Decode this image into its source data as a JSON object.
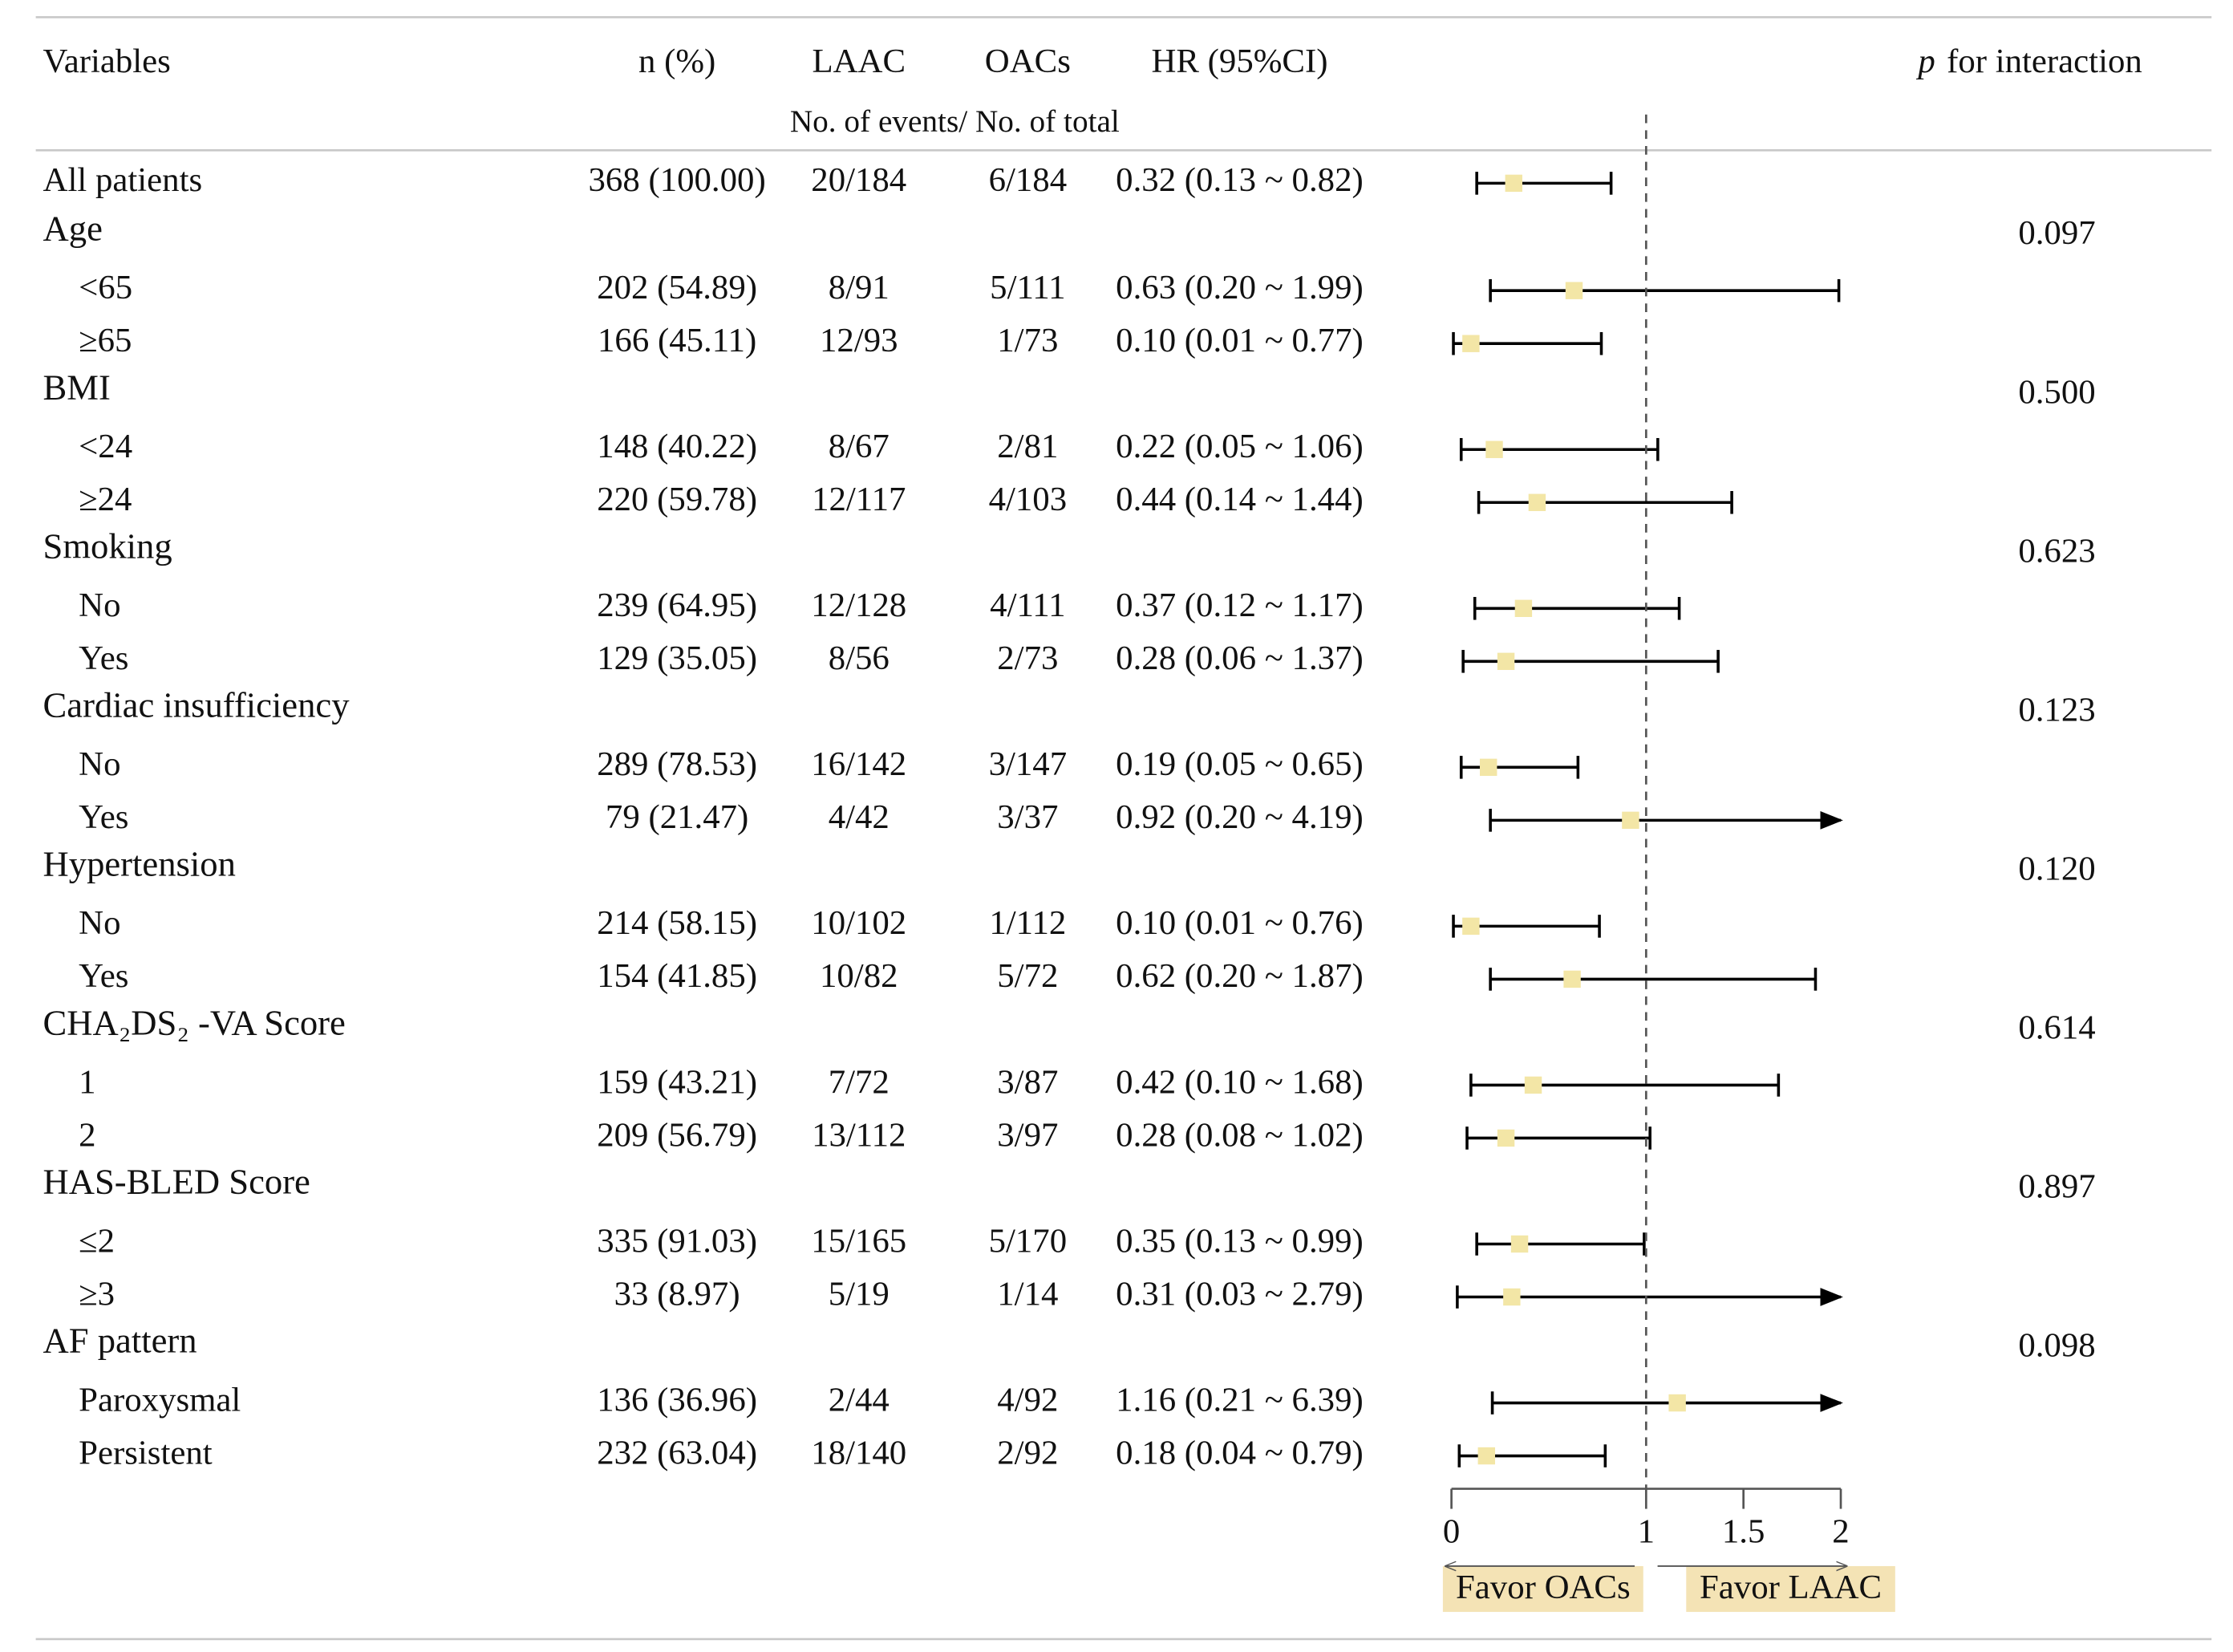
{
  "chart_data": {
    "type": "forest",
    "headers": {
      "variables": "Variables",
      "n": "n (%)",
      "laac": "LAAC",
      "oacs": "OACs",
      "hr": "HR (95%CI)",
      "p_symbol": "p",
      "p_text": "for interaction",
      "subheader": "No. of events/ No. of total"
    },
    "overall": {
      "label": "All patients",
      "n": "368 (100.00)",
      "laac": "20/184",
      "oacs": "6/184",
      "hr_label": "0.32 (0.13 ~ 0.82)",
      "hr": 0.32,
      "lo": 0.13,
      "hi": 0.82
    },
    "groups": [
      {
        "label": "Age",
        "p": "0.097",
        "rows": [
          {
            "label": "<65",
            "n": "202 (54.89)",
            "laac": "8/91",
            "oacs": "5/111",
            "hr_label": "0.63 (0.20 ~ 1.99)",
            "hr": 0.63,
            "lo": 0.2,
            "hi": 1.99
          },
          {
            "label": "≥65",
            "n": "166 (45.11)",
            "laac": "12/93",
            "oacs": "1/73",
            "hr_label": "0.10 (0.01 ~ 0.77)",
            "hr": 0.1,
            "lo": 0.01,
            "hi": 0.77
          }
        ]
      },
      {
        "label": "BMI",
        "p": "0.500",
        "rows": [
          {
            "label": "<24",
            "n": "148 (40.22)",
            "laac": "8/67",
            "oacs": "2/81",
            "hr_label": "0.22 (0.05 ~ 1.06)",
            "hr": 0.22,
            "lo": 0.05,
            "hi": 1.06
          },
          {
            "label": "≥24",
            "n": "220 (59.78)",
            "laac": "12/117",
            "oacs": "4/103",
            "hr_label": "0.44 (0.14 ~ 1.44)",
            "hr": 0.44,
            "lo": 0.14,
            "hi": 1.44
          }
        ]
      },
      {
        "label": "Smoking",
        "p": "0.623",
        "rows": [
          {
            "label": "No",
            "n": "239 (64.95)",
            "laac": "12/128",
            "oacs": "4/111",
            "hr_label": "0.37 (0.12 ~ 1.17)",
            "hr": 0.37,
            "lo": 0.12,
            "hi": 1.17
          },
          {
            "label": "Yes",
            "n": "129 (35.05)",
            "laac": "8/56",
            "oacs": "2/73",
            "hr_label": "0.28 (0.06 ~ 1.37)",
            "hr": 0.28,
            "lo": 0.06,
            "hi": 1.37
          }
        ]
      },
      {
        "label": "Cardiac insufficiency",
        "p": "0.123",
        "rows": [
          {
            "label": "No",
            "n": "289 (78.53)",
            "laac": "16/142",
            "oacs": "3/147",
            "hr_label": "0.19 (0.05 ~ 0.65)",
            "hr": 0.19,
            "lo": 0.05,
            "hi": 0.65
          },
          {
            "label": "Yes",
            "n": "79 (21.47)",
            "laac": "4/42",
            "oacs": "3/37",
            "hr_label": "0.92 (0.20 ~ 4.19)",
            "hr": 0.92,
            "lo": 0.2,
            "hi": 4.19
          }
        ]
      },
      {
        "label": "Hypertension",
        "p": "0.120",
        "rows": [
          {
            "label": "No",
            "n": "214 (58.15)",
            "laac": "10/102",
            "oacs": "1/112",
            "hr_label": "0.10 (0.01 ~ 0.76)",
            "hr": 0.1,
            "lo": 0.01,
            "hi": 0.76
          },
          {
            "label": "Yes",
            "n": "154 (41.85)",
            "laac": "10/82",
            "oacs": "5/72",
            "hr_label": "0.62 (0.20 ~ 1.87)",
            "hr": 0.62,
            "lo": 0.2,
            "hi": 1.87
          }
        ]
      },
      {
        "label": "CHA₂DS₂ -VA Score",
        "p": "0.614",
        "rows": [
          {
            "label": "1",
            "n": "159 (43.21)",
            "laac": "7/72",
            "oacs": "3/87",
            "hr_label": "0.42 (0.10 ~ 1.68)",
            "hr": 0.42,
            "lo": 0.1,
            "hi": 1.68
          },
          {
            "label": "2",
            "n": "209 (56.79)",
            "laac": "13/112",
            "oacs": "3/97",
            "hr_label": "0.28 (0.08 ~ 1.02)",
            "hr": 0.28,
            "lo": 0.08,
            "hi": 1.02
          }
        ]
      },
      {
        "label": "HAS-BLED Score",
        "p": "0.897",
        "rows": [
          {
            "label": "≤2",
            "n": "335 (91.03)",
            "laac": "15/165",
            "oacs": "5/170",
            "hr_label": "0.35 (0.13 ~ 0.99)",
            "hr": 0.35,
            "lo": 0.13,
            "hi": 0.99
          },
          {
            "label": "≥3",
            "n": "33 (8.97)",
            "laac": "5/19",
            "oacs": "1/14",
            "hr_label": "0.31 (0.03 ~ 2.79)",
            "hr": 0.31,
            "lo": 0.03,
            "hi": 2.79
          }
        ]
      },
      {
        "label": "AF pattern",
        "p": "0.098",
        "rows": [
          {
            "label": "Paroxysmal",
            "n": "136 (36.96)",
            "laac": "2/44",
            "oacs": "4/92",
            "hr_label": "1.16 (0.21 ~ 6.39)",
            "hr": 1.16,
            "lo": 0.21,
            "hi": 6.39
          },
          {
            "label": "Persistent",
            "n": "232 (63.04)",
            "laac": "18/140",
            "oacs": "2/92",
            "hr_label": "0.18 (0.04 ~ 0.79)",
            "hr": 0.18,
            "lo": 0.04,
            "hi": 0.79
          }
        ]
      }
    ],
    "xlim": [
      0,
      2
    ],
    "xticks": [
      0,
      1,
      1.5,
      2
    ],
    "reference": 1,
    "favor_left": "Favor OACs",
    "favor_right": "Favor LAAC",
    "marker_color": "#f3e6a6",
    "line_color": "#000000",
    "favor_color": "#f4e3b5"
  }
}
